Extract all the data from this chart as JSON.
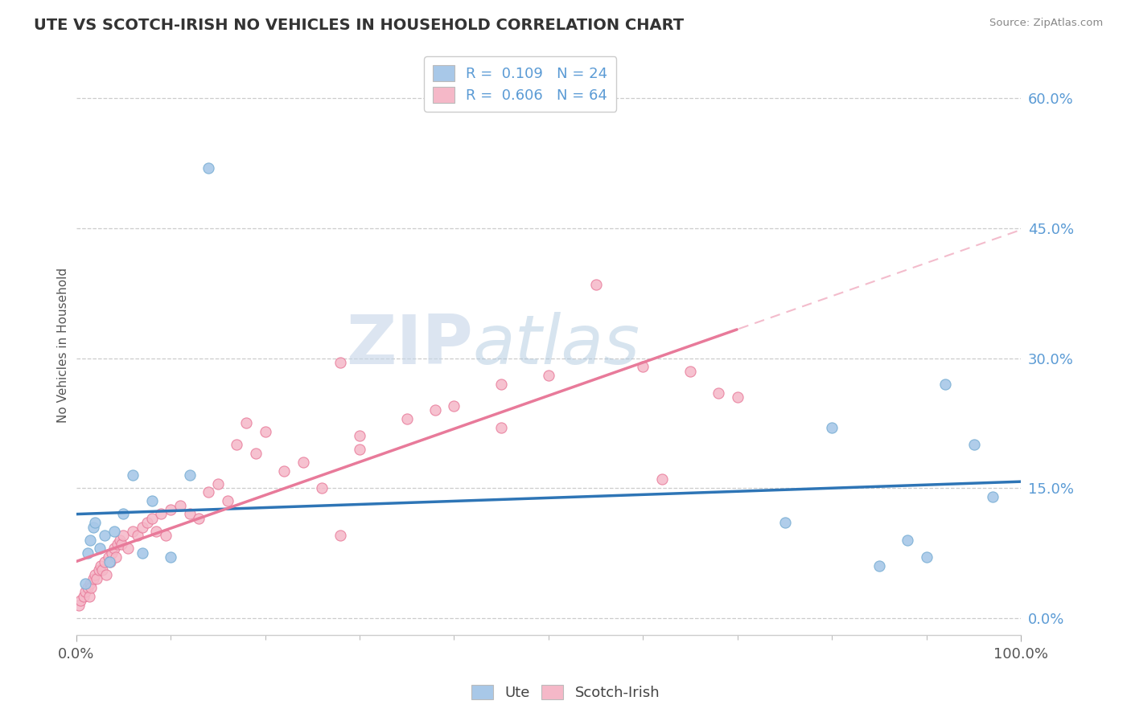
{
  "title": "UTE VS SCOTCH-IRISH NO VEHICLES IN HOUSEHOLD CORRELATION CHART",
  "source": "Source: ZipAtlas.com",
  "ylabel": "No Vehicles in Household",
  "ytick_vals": [
    0.0,
    15.0,
    30.0,
    45.0,
    60.0
  ],
  "xlim": [
    0,
    100
  ],
  "ylim": [
    -2,
    65
  ],
  "ute_color": "#a8c8e8",
  "ute_edge_color": "#7aafd4",
  "ute_line_color": "#2e75b6",
  "scotch_color": "#f5b8c8",
  "scotch_edge_color": "#e87a9a",
  "scotch_line_color": "#e87a9a",
  "watermark_zip": "ZIP",
  "watermark_atlas": "atlas",
  "background_color": "#ffffff",
  "grid_color": "#cccccc",
  "ute_x": [
    1.0,
    1.2,
    1.5,
    1.8,
    2.0,
    2.5,
    3.0,
    3.5,
    4.0,
    5.0,
    6.0,
    7.0,
    8.0,
    10.0,
    12.0,
    14.0,
    75.0,
    80.0,
    85.0,
    88.0,
    90.0,
    92.0,
    95.0,
    97.0
  ],
  "ute_y": [
    4.0,
    7.5,
    9.0,
    10.5,
    11.0,
    8.0,
    9.5,
    6.5,
    10.0,
    12.0,
    16.5,
    7.5,
    13.5,
    7.0,
    16.5,
    52.0,
    11.0,
    22.0,
    6.0,
    9.0,
    7.0,
    27.0,
    20.0,
    14.0
  ],
  "scotch_x": [
    0.3,
    0.5,
    0.8,
    1.0,
    1.2,
    1.4,
    1.5,
    1.6,
    1.8,
    2.0,
    2.2,
    2.4,
    2.6,
    2.8,
    3.0,
    3.2,
    3.4,
    3.6,
    3.8,
    4.0,
    4.2,
    4.4,
    4.6,
    4.8,
    5.0,
    5.5,
    6.0,
    6.5,
    7.0,
    7.5,
    8.0,
    8.5,
    9.0,
    9.5,
    10.0,
    11.0,
    12.0,
    13.0,
    14.0,
    15.0,
    16.0,
    17.0,
    18.0,
    19.0,
    20.0,
    22.0,
    24.0,
    26.0,
    28.0,
    30.0,
    35.0,
    40.0,
    45.0,
    50.0,
    55.0,
    60.0,
    62.0,
    65.0,
    68.0,
    70.0,
    45.0,
    30.0,
    38.0,
    28.0
  ],
  "scotch_y": [
    1.5,
    2.0,
    2.5,
    3.0,
    3.5,
    2.5,
    4.0,
    3.5,
    4.5,
    5.0,
    4.5,
    5.5,
    6.0,
    5.5,
    6.5,
    5.0,
    7.0,
    6.5,
    7.5,
    8.0,
    7.0,
    8.5,
    9.0,
    8.5,
    9.5,
    8.0,
    10.0,
    9.5,
    10.5,
    11.0,
    11.5,
    10.0,
    12.0,
    9.5,
    12.5,
    13.0,
    12.0,
    11.5,
    14.5,
    15.5,
    13.5,
    20.0,
    22.5,
    19.0,
    21.5,
    17.0,
    18.0,
    15.0,
    9.5,
    21.0,
    23.0,
    24.5,
    27.0,
    28.0,
    38.5,
    29.0,
    16.0,
    28.5,
    26.0,
    25.5,
    22.0,
    19.5,
    24.0,
    29.5
  ],
  "solid_line_end_pct": 0.65
}
